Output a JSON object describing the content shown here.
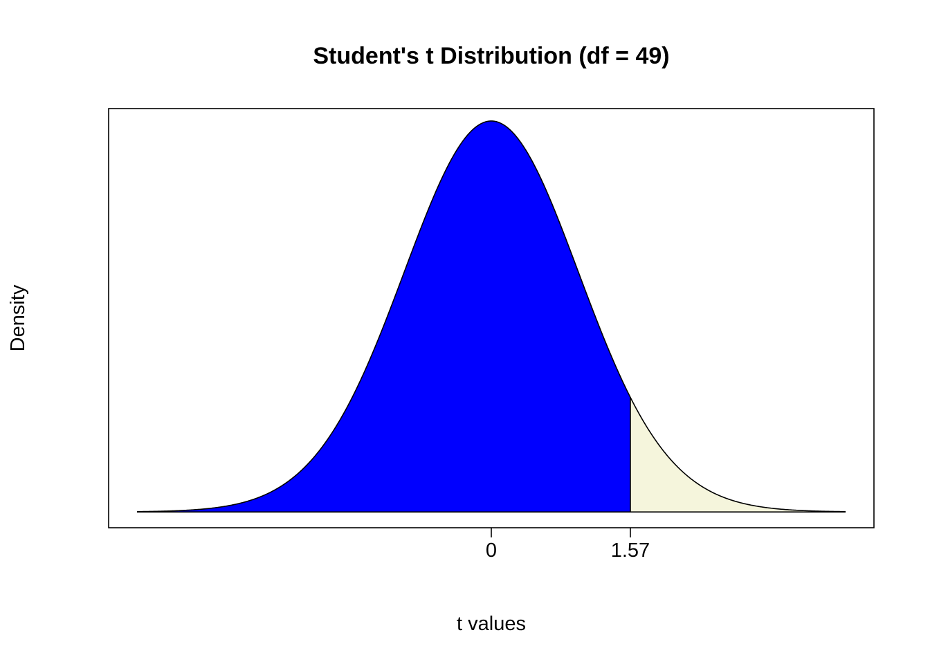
{
  "chart_data": {
    "type": "area",
    "title": "Student's t Distribution (df = 49)",
    "xlabel": "t values",
    "ylabel": "Density",
    "df": 49,
    "x_range": [
      -4,
      4
    ],
    "xlim": [
      -4.32,
      4.32
    ],
    "ylim": [
      -0.016,
      0.4095
    ],
    "critical_value": 1.57,
    "x_ticks": [
      {
        "value": 0,
        "label": "0"
      },
      {
        "value": 1.57,
        "label": "1.57"
      }
    ],
    "regions": [
      {
        "from": -4,
        "to": 1.57,
        "fill": "#0000ff"
      },
      {
        "from": 1.57,
        "to": 4,
        "fill": "#f5f5dc"
      }
    ],
    "curve_color": "#000000",
    "grid": false,
    "legend": false
  }
}
